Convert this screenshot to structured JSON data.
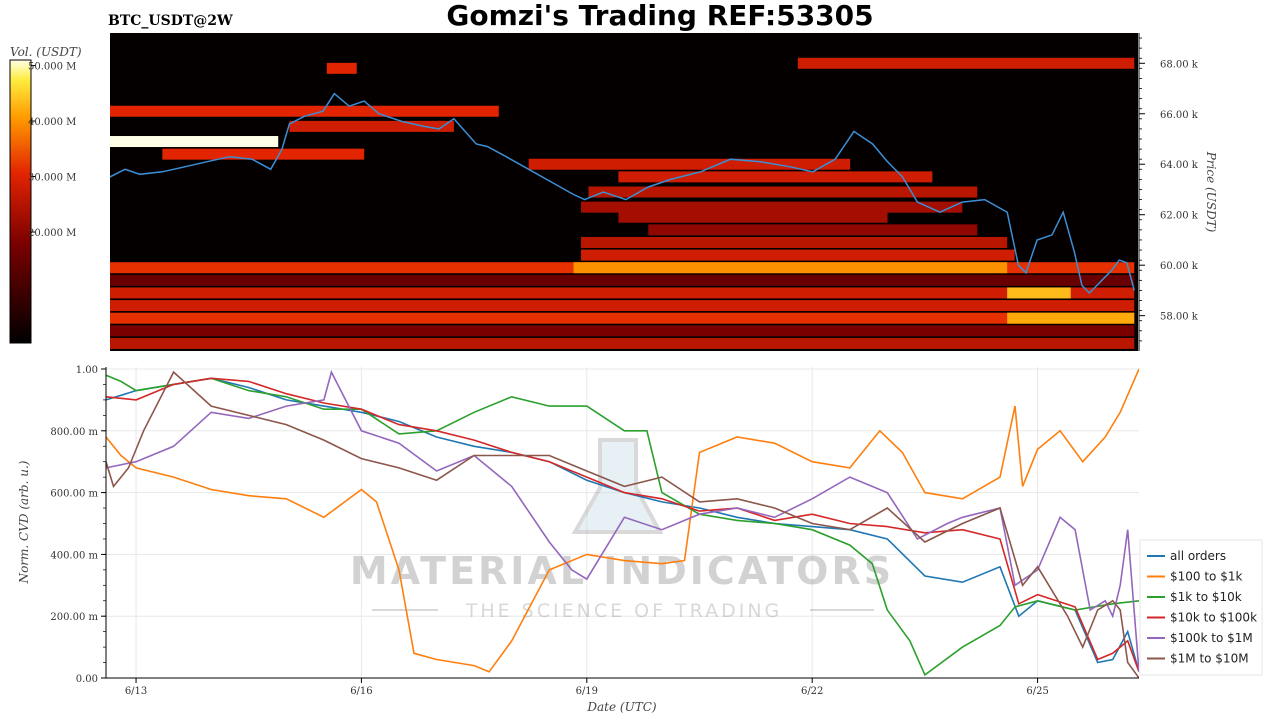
{
  "header": {
    "symbol_label": "BTC_USDT@2W",
    "title": "Gomzi's Trading REF:53305"
  },
  "watermark": {
    "line1": "MATERIAL INDICATORS",
    "line2": "THE SCIENCE OF TRADING"
  },
  "colors": {
    "all_orders": "#1f77b4",
    "usd100_1k": "#ff7f0e",
    "usd1k_10k": "#2ca02c",
    "usd10k_100k": "#d62728",
    "usd100k_1m": "#9467bd",
    "usd1m_10m": "#8c564b",
    "price_line": "#3b8fd6"
  },
  "chart_data": [
    {
      "type": "heatmap",
      "title": "Gomzi's Trading REF:53305",
      "ylabel": "Price (USDT)",
      "ylim": [
        56600,
        69200
      ],
      "y_ticks": [
        {
          "value": 58000,
          "label": "58.00 k"
        },
        {
          "value": 60000,
          "label": "60.00 k"
        },
        {
          "value": 62000,
          "label": "62.00 k"
        },
        {
          "value": 64000,
          "label": "64.00 k"
        },
        {
          "value": 66000,
          "label": "66.00 k"
        },
        {
          "value": 68000,
          "label": "68.00 k"
        }
      ],
      "colorbar": {
        "label": "Vol. (USDT)",
        "range": [
          0,
          51000000
        ],
        "ticks": [
          {
            "value": 20000000,
            "label": "20.000 M"
          },
          {
            "value": 30000000,
            "label": "30.000 M"
          },
          {
            "value": 40000000,
            "label": "40.000 M"
          },
          {
            "value": 50000000,
            "label": "50.000 M"
          }
        ]
      },
      "xlim": [
        12.6,
        26.35
      ],
      "price_series": {
        "x": [
          12.6,
          12.8,
          13.0,
          13.3,
          13.6,
          13.9,
          14.2,
          14.5,
          14.75,
          14.9,
          15.0,
          15.2,
          15.45,
          15.6,
          15.8,
          16.0,
          16.2,
          16.5,
          16.8,
          17.0,
          17.2,
          17.5,
          17.65,
          17.9,
          18.2,
          18.5,
          18.8,
          18.95,
          19.2,
          19.5,
          19.8,
          20.1,
          20.5,
          20.9,
          21.3,
          21.7,
          22.0,
          22.3,
          22.55,
          22.8,
          23.0,
          23.2,
          23.4,
          23.7,
          24.0,
          24.3,
          24.6,
          24.75,
          24.85,
          25.0,
          25.2,
          25.35,
          25.5,
          25.6,
          25.7,
          25.8,
          26.0,
          26.1,
          26.2,
          26.3
        ],
        "y": [
          63500,
          63800,
          63600,
          63700,
          63900,
          64100,
          64300,
          64200,
          63800,
          64600,
          65600,
          65900,
          66100,
          66800,
          66300,
          66500,
          66000,
          65700,
          65500,
          65400,
          65800,
          64800,
          64700,
          64300,
          63800,
          63300,
          62800,
          62600,
          62900,
          62600,
          63100,
          63400,
          63700,
          64200,
          64100,
          63900,
          63700,
          64200,
          65300,
          64800,
          64100,
          63500,
          62500,
          62100,
          62500,
          62600,
          62100,
          60000,
          59700,
          61000,
          61200,
          62100,
          60500,
          59200,
          58900,
          59200,
          59800,
          60200,
          60100,
          59000
        ]
      },
      "bands": [
        {
          "y": 68000,
          "x_start": 21.8,
          "x_end": 26.3,
          "intensity": 0.55
        },
        {
          "y": 67800,
          "x_start": 15.5,
          "x_end": 15.9,
          "intensity": 0.6
        },
        {
          "y": 66100,
          "x_start": 12.6,
          "x_end": 17.8,
          "intensity": 0.6
        },
        {
          "y": 65500,
          "x_start": 15.0,
          "x_end": 17.2,
          "intensity": 0.55
        },
        {
          "y": 64900,
          "x_start": 12.6,
          "x_end": 14.85,
          "intensity": 1.0
        },
        {
          "y": 64400,
          "x_start": 13.3,
          "x_end": 16.0,
          "intensity": 0.6
        },
        {
          "y": 64000,
          "x_start": 18.2,
          "x_end": 22.5,
          "intensity": 0.55
        },
        {
          "y": 63500,
          "x_start": 19.4,
          "x_end": 23.6,
          "intensity": 0.55
        },
        {
          "y": 62900,
          "x_start": 19.0,
          "x_end": 24.2,
          "intensity": 0.5
        },
        {
          "y": 62300,
          "x_start": 18.9,
          "x_end": 24.0,
          "intensity": 0.45
        },
        {
          "y": 61900,
          "x_start": 19.4,
          "x_end": 23.0,
          "intensity": 0.45
        },
        {
          "y": 61400,
          "x_start": 19.8,
          "x_end": 24.2,
          "intensity": 0.4
        },
        {
          "y": 60900,
          "x_start": 18.9,
          "x_end": 24.6,
          "intensity": 0.5
        },
        {
          "y": 60400,
          "x_start": 18.9,
          "x_end": 24.7,
          "intensity": 0.55
        },
        {
          "y": 59900,
          "x_start": 12.6,
          "x_end": 26.3,
          "intensity": 0.62
        },
        {
          "y": 59900,
          "x_start": 18.8,
          "x_end": 24.6,
          "intensity": 0.78
        },
        {
          "y": 59400,
          "x_start": 12.6,
          "x_end": 26.3,
          "intensity": 0.3
        },
        {
          "y": 58900,
          "x_start": 12.6,
          "x_end": 26.3,
          "intensity": 0.55
        },
        {
          "y": 58900,
          "x_start": 24.6,
          "x_end": 25.45,
          "intensity": 0.85
        },
        {
          "y": 58400,
          "x_start": 12.6,
          "x_end": 26.3,
          "intensity": 0.55
        },
        {
          "y": 57900,
          "x_start": 12.6,
          "x_end": 26.3,
          "intensity": 0.62
        },
        {
          "y": 57900,
          "x_start": 24.6,
          "x_end": 26.3,
          "intensity": 0.82
        },
        {
          "y": 57400,
          "x_start": 12.6,
          "x_end": 26.3,
          "intensity": 0.35
        },
        {
          "y": 56900,
          "x_start": 12.6,
          "x_end": 26.3,
          "intensity": 0.5
        }
      ]
    },
    {
      "type": "line",
      "xlabel": "Date (UTC)",
      "ylabel": "Norm. CVD (arb. u.)",
      "ylim": [
        0,
        1
      ],
      "xlim": [
        12.6,
        26.35
      ],
      "x_ticks": [
        {
          "value": 13,
          "label": "6/13"
        },
        {
          "value": 16,
          "label": "6/16"
        },
        {
          "value": 19,
          "label": "6/19"
        },
        {
          "value": 22,
          "label": "6/22"
        },
        {
          "value": 25,
          "label": "6/25"
        }
      ],
      "y_ticks": [
        {
          "value": 0,
          "label": "0.00"
        },
        {
          "value": 0.2,
          "label": "200.00 m"
        },
        {
          "value": 0.4,
          "label": "400.00 m"
        },
        {
          "value": 0.6,
          "label": "600.00 m"
        },
        {
          "value": 0.8,
          "label": "800.00 m"
        },
        {
          "value": 1.0,
          "label": "1.00"
        }
      ],
      "legend_position": "bottom-right",
      "series": [
        {
          "name": "all orders",
          "x": [
            12.6,
            13.0,
            13.5,
            14.0,
            14.5,
            15.0,
            15.5,
            16.0,
            16.5,
            17.0,
            17.5,
            18.0,
            18.5,
            19.0,
            19.5,
            20.0,
            20.5,
            21.0,
            21.5,
            22.0,
            22.5,
            23.0,
            23.5,
            24.0,
            24.5,
            24.75,
            25.0,
            25.5,
            25.8,
            26.0,
            26.2,
            26.35
          ],
          "y": [
            0.9,
            0.93,
            0.95,
            0.97,
            0.94,
            0.9,
            0.88,
            0.86,
            0.83,
            0.78,
            0.75,
            0.73,
            0.7,
            0.64,
            0.6,
            0.57,
            0.55,
            0.52,
            0.5,
            0.49,
            0.48,
            0.45,
            0.33,
            0.31,
            0.36,
            0.2,
            0.25,
            0.22,
            0.05,
            0.06,
            0.15,
            0.02
          ]
        },
        {
          "name": "$100 to $1k",
          "x": [
            12.6,
            12.8,
            13.0,
            13.5,
            14.0,
            14.5,
            15.0,
            15.5,
            16.0,
            16.2,
            16.5,
            16.7,
            17.0,
            17.5,
            17.7,
            18.0,
            18.5,
            19.0,
            19.5,
            20.0,
            20.3,
            20.5,
            21.0,
            21.5,
            22.0,
            22.5,
            22.9,
            23.2,
            23.5,
            24.0,
            24.5,
            24.7,
            24.8,
            25.0,
            25.3,
            25.6,
            25.9,
            26.1,
            26.35
          ],
          "y": [
            0.78,
            0.72,
            0.68,
            0.65,
            0.61,
            0.59,
            0.58,
            0.52,
            0.61,
            0.57,
            0.35,
            0.08,
            0.06,
            0.04,
            0.02,
            0.12,
            0.35,
            0.4,
            0.38,
            0.37,
            0.38,
            0.73,
            0.78,
            0.76,
            0.7,
            0.68,
            0.8,
            0.73,
            0.6,
            0.58,
            0.65,
            0.88,
            0.62,
            0.74,
            0.8,
            0.7,
            0.78,
            0.86,
            1.0
          ]
        },
        {
          "name": "$1k to $10k",
          "x": [
            12.6,
            12.8,
            13.0,
            13.5,
            14.0,
            14.5,
            15.0,
            15.5,
            16.0,
            16.5,
            17.0,
            17.5,
            18.0,
            18.5,
            19.0,
            19.5,
            19.8,
            20.0,
            20.5,
            21.0,
            21.5,
            22.0,
            22.5,
            22.8,
            23.0,
            23.3,
            23.5,
            24.0,
            24.5,
            24.7,
            25.0,
            25.5,
            26.0,
            26.35
          ],
          "y": [
            0.98,
            0.96,
            0.93,
            0.95,
            0.97,
            0.93,
            0.91,
            0.87,
            0.87,
            0.79,
            0.8,
            0.86,
            0.91,
            0.88,
            0.88,
            0.8,
            0.8,
            0.6,
            0.53,
            0.51,
            0.5,
            0.48,
            0.43,
            0.37,
            0.22,
            0.12,
            0.01,
            0.1,
            0.17,
            0.23,
            0.25,
            0.22,
            0.24,
            0.25
          ]
        },
        {
          "name": "$10k to $100k",
          "x": [
            12.6,
            13.0,
            13.5,
            14.0,
            14.5,
            15.0,
            15.5,
            16.0,
            16.5,
            17.0,
            17.5,
            18.0,
            18.5,
            19.0,
            19.5,
            20.0,
            20.5,
            21.0,
            21.5,
            22.0,
            22.5,
            23.0,
            23.5,
            24.0,
            24.5,
            24.75,
            25.0,
            25.5,
            25.8,
            26.0,
            26.2,
            26.35
          ],
          "y": [
            0.91,
            0.9,
            0.95,
            0.97,
            0.96,
            0.92,
            0.89,
            0.87,
            0.82,
            0.8,
            0.77,
            0.73,
            0.7,
            0.65,
            0.6,
            0.58,
            0.54,
            0.55,
            0.51,
            0.53,
            0.5,
            0.49,
            0.47,
            0.48,
            0.45,
            0.24,
            0.27,
            0.23,
            0.06,
            0.08,
            0.12,
            0.02
          ]
        },
        {
          "name": "$100k to $1M",
          "x": [
            12.6,
            13.0,
            13.5,
            14.0,
            14.5,
            15.0,
            15.5,
            15.6,
            16.0,
            16.5,
            17.0,
            17.5,
            18.0,
            18.5,
            18.8,
            19.0,
            19.5,
            20.0,
            20.5,
            21.0,
            21.5,
            22.0,
            22.5,
            23.0,
            23.4,
            23.8,
            24.0,
            24.5,
            24.7,
            25.0,
            25.3,
            25.5,
            25.7,
            25.9,
            26.0,
            26.1,
            26.2,
            26.35
          ],
          "y": [
            0.68,
            0.7,
            0.75,
            0.86,
            0.84,
            0.88,
            0.9,
            0.99,
            0.8,
            0.76,
            0.67,
            0.72,
            0.62,
            0.44,
            0.35,
            0.32,
            0.52,
            0.48,
            0.53,
            0.55,
            0.52,
            0.58,
            0.65,
            0.6,
            0.45,
            0.5,
            0.52,
            0.55,
            0.3,
            0.35,
            0.52,
            0.48,
            0.22,
            0.25,
            0.2,
            0.3,
            0.48,
            0.02
          ]
        },
        {
          "name": "$1M to $10M",
          "x": [
            12.6,
            12.7,
            12.9,
            13.1,
            13.5,
            14.0,
            14.5,
            15.0,
            15.5,
            16.0,
            16.5,
            17.0,
            17.5,
            18.0,
            18.5,
            19.0,
            19.5,
            20.0,
            20.5,
            21.0,
            21.5,
            22.0,
            22.5,
            23.0,
            23.5,
            24.0,
            24.5,
            24.8,
            25.0,
            25.4,
            25.6,
            25.8,
            26.0,
            26.1,
            26.2,
            26.35
          ],
          "y": [
            0.7,
            0.62,
            0.68,
            0.8,
            0.99,
            0.88,
            0.85,
            0.82,
            0.77,
            0.71,
            0.68,
            0.64,
            0.72,
            0.72,
            0.72,
            0.67,
            0.62,
            0.65,
            0.57,
            0.58,
            0.55,
            0.5,
            0.48,
            0.55,
            0.44,
            0.5,
            0.55,
            0.3,
            0.36,
            0.2,
            0.1,
            0.22,
            0.25,
            0.22,
            0.05,
            0.0
          ]
        }
      ]
    }
  ]
}
